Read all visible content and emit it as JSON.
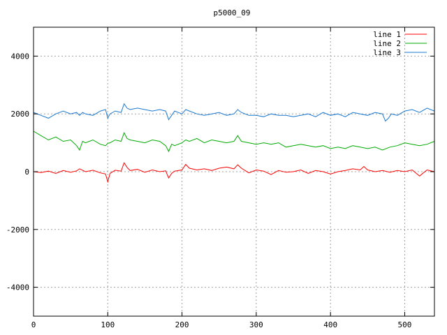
{
  "chart_data": {
    "type": "line",
    "title": "p5000_09",
    "xlabel": "",
    "ylabel": "",
    "xlim": [
      0,
      540
    ],
    "ylim": [
      -5000,
      5000
    ],
    "x_ticks": [
      0,
      100,
      200,
      300,
      400,
      500
    ],
    "y_ticks": [
      -4000,
      -2000,
      0,
      2000,
      4000
    ],
    "grid": true,
    "legend_position": "top-right",
    "series": [
      {
        "name": "line 1",
        "color": "#ff0000",
        "x": [
          0,
          10,
          20,
          30,
          40,
          50,
          58,
          62,
          70,
          80,
          90,
          97,
          100,
          103,
          110,
          118,
          122,
          126,
          130,
          140,
          150,
          160,
          170,
          178,
          182,
          186,
          190,
          200,
          205,
          210,
          220,
          230,
          240,
          250,
          260,
          270,
          275,
          280,
          290,
          300,
          310,
          320,
          330,
          340,
          350,
          360,
          370,
          380,
          390,
          400,
          410,
          420,
          430,
          440,
          445,
          450,
          460,
          470,
          480,
          490,
          500,
          510,
          520,
          530,
          540
        ],
        "y": [
          0,
          -30,
          20,
          -60,
          40,
          -20,
          30,
          100,
          0,
          50,
          -40,
          -80,
          -350,
          -60,
          50,
          20,
          310,
          150,
          40,
          80,
          -20,
          60,
          0,
          30,
          -220,
          -60,
          20,
          60,
          250,
          120,
          60,
          100,
          40,
          120,
          160,
          100,
          240,
          120,
          -40,
          60,
          20,
          -100,
          40,
          -20,
          0,
          60,
          -60,
          40,
          0,
          -80,
          0,
          40,
          100,
          60,
          180,
          60,
          0,
          40,
          -20,
          40,
          0,
          60,
          -150,
          60,
          0
        ]
      },
      {
        "name": "line 2",
        "color": "#00aa00",
        "x": [
          0,
          10,
          20,
          30,
          40,
          50,
          58,
          62,
          66,
          70,
          80,
          90,
          97,
          100,
          103,
          110,
          118,
          122,
          126,
          130,
          140,
          150,
          160,
          170,
          178,
          182,
          186,
          190,
          200,
          205,
          210,
          220,
          230,
          240,
          250,
          260,
          270,
          275,
          280,
          290,
          300,
          310,
          320,
          330,
          340,
          350,
          360,
          370,
          380,
          390,
          400,
          410,
          420,
          430,
          440,
          450,
          460,
          470,
          480,
          490,
          500,
          510,
          520,
          530,
          540
        ],
        "y": [
          1400,
          1250,
          1100,
          1200,
          1050,
          1100,
          900,
          750,
          1050,
          1000,
          1100,
          950,
          900,
          980,
          1000,
          1100,
          1050,
          1350,
          1150,
          1100,
          1050,
          1000,
          1100,
          1050,
          900,
          700,
          950,
          900,
          1000,
          1100,
          1050,
          1150,
          1000,
          1100,
          1050,
          1000,
          1050,
          1250,
          1050,
          1000,
          950,
          1000,
          950,
          1000,
          850,
          900,
          950,
          900,
          850,
          900,
          800,
          850,
          800,
          900,
          850,
          800,
          850,
          750,
          850,
          900,
          1000,
          950,
          900,
          950,
          1050
        ]
      },
      {
        "name": "line 3",
        "color": "#1a78d0",
        "x": [
          0,
          10,
          20,
          30,
          40,
          50,
          58,
          62,
          66,
          70,
          80,
          90,
          97,
          100,
          103,
          110,
          118,
          122,
          126,
          130,
          140,
          150,
          160,
          170,
          178,
          182,
          186,
          190,
          200,
          205,
          210,
          220,
          230,
          240,
          250,
          260,
          270,
          275,
          280,
          290,
          300,
          310,
          320,
          330,
          340,
          350,
          360,
          370,
          380,
          390,
          400,
          410,
          420,
          430,
          440,
          450,
          460,
          470,
          474,
          478,
          482,
          490,
          500,
          510,
          520,
          530,
          540
        ],
        "y": [
          2050,
          1950,
          1850,
          2000,
          2100,
          2000,
          2050,
          1950,
          2050,
          2000,
          1950,
          2100,
          2150,
          1850,
          2000,
          2100,
          2050,
          2350,
          2200,
          2150,
          2200,
          2150,
          2100,
          2150,
          2100,
          1800,
          1950,
          2100,
          2000,
          2150,
          2100,
          2000,
          1950,
          2000,
          2050,
          1950,
          2000,
          2150,
          2050,
          1950,
          1950,
          1900,
          2000,
          1950,
          1950,
          1900,
          1950,
          2000,
          1900,
          2050,
          1950,
          2000,
          1900,
          2050,
          2000,
          1950,
          2050,
          2000,
          1750,
          1850,
          2000,
          1950,
          2100,
          2150,
          2050,
          2200,
          2100
        ]
      }
    ]
  }
}
